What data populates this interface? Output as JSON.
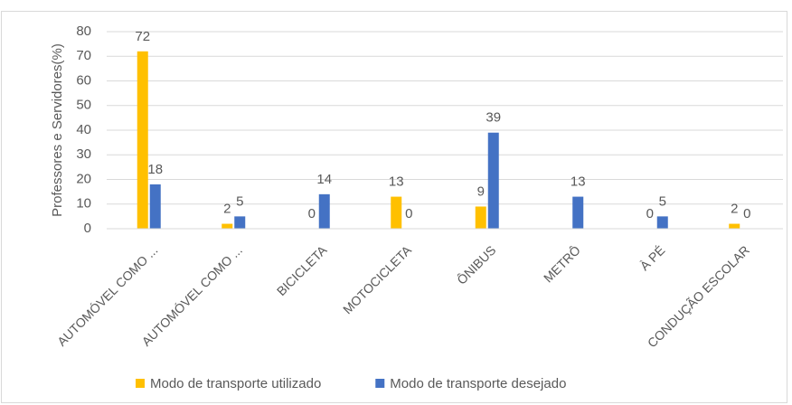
{
  "chart_data": {
    "type": "bar",
    "y_label": "Professores e Servidores(%)",
    "categories": [
      "AUTOMÓVEL COMO ...",
      "AUTOMÓVEL COMO ...",
      "BICICLETA",
      "MOTOCICLETA",
      "ÔNIBUS",
      "METRÔ",
      "À PÉ",
      "CONDUÇÃO ESCOLAR"
    ],
    "series": [
      {
        "name": "Modo de transporte utilizado",
        "color": "#ffc000",
        "values": [
          72,
          2,
          0,
          13,
          9,
          null,
          0,
          2
        ]
      },
      {
        "name": "Modo de transporte desejado",
        "color": "#4472c4",
        "values": [
          18,
          5,
          14,
          0,
          39,
          13,
          5,
          0
        ]
      }
    ],
    "ylim": [
      0,
      80
    ],
    "yticks": [
      0,
      10,
      20,
      30,
      40,
      50,
      60,
      70,
      80
    ],
    "grid": true,
    "legend": "bottom"
  }
}
